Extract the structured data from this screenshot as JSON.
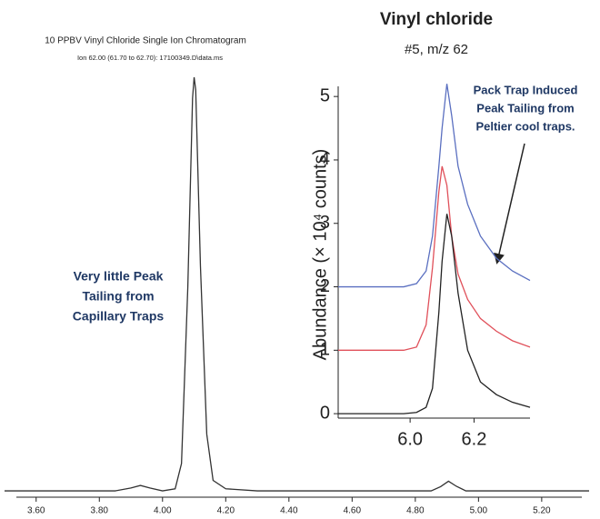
{
  "chart_data": [
    {
      "type": "line",
      "title": "10 PPBV Vinyl Chloride Single Ion Chromatogram",
      "subtitle": "Ion 62.00 (61.70 to 62.70): 17100349.D\\data.ms",
      "annotations": [
        {
          "lines": [
            "Very little Peak",
            "Tailing from",
            "Capillary Traps"
          ],
          "color": "#1f3864"
        }
      ],
      "x": [
        3.5,
        3.85,
        3.9,
        3.93,
        3.96,
        4.0,
        4.04,
        4.06,
        4.08,
        4.095,
        4.1,
        4.105,
        4.12,
        4.14,
        4.16,
        4.2,
        4.3,
        4.85,
        4.88,
        4.905,
        4.93,
        4.96,
        5.35
      ],
      "values": [
        1.5,
        1.5,
        2.2,
        2.8,
        2.2,
        1.5,
        2,
        8,
        50,
        95,
        100,
        97,
        55,
        15,
        4,
        2,
        1.5,
        1.5,
        2.5,
        3.8,
        2.6,
        1.5,
        1.5
      ],
      "color": "#333333",
      "xlim": [
        3.5,
        5.35
      ],
      "ylim": [
        0,
        100
      ],
      "xticks": [
        {
          "value": 3.6,
          "label": "3.60"
        },
        {
          "value": 3.8,
          "label": "3.80"
        },
        {
          "value": 4.0,
          "label": "4.00"
        },
        {
          "value": 4.2,
          "label": "4.20"
        },
        {
          "value": 4.4,
          "label": "4.40"
        },
        {
          "value": 4.6,
          "label": "4.60"
        },
        {
          "value": 4.8,
          "label": "4.80"
        },
        {
          "value": 5.0,
          "label": "5.00"
        },
        {
          "value": 5.2,
          "label": "5.20"
        }
      ]
    },
    {
      "type": "line",
      "title": "Vinyl chloride",
      "subtitle": "#5, m/z 62",
      "ylabel": "Abundance (× 10⁴ counts)",
      "annotations": [
        {
          "lines": [
            "Pack Trap Induced",
            "Peak Tailing from",
            "Peltier cool traps."
          ],
          "color": "#1f3864"
        }
      ],
      "x": [
        5.775,
        5.9,
        5.98,
        6.02,
        6.05,
        6.07,
        6.09,
        6.1,
        6.115,
        6.13,
        6.15,
        6.18,
        6.22,
        6.27,
        6.32,
        6.375
      ],
      "series": [
        {
          "color": "#5a6fc0",
          "values": [
            2.0,
            2.0,
            2.0,
            2.05,
            2.25,
            2.8,
            3.9,
            4.5,
            5.2,
            4.7,
            3.9,
            3.3,
            2.8,
            2.45,
            2.25,
            2.1
          ]
        },
        {
          "color": "#e0505a",
          "values": [
            1.0,
            1.0,
            1.0,
            1.05,
            1.4,
            2.3,
            3.5,
            3.9,
            3.6,
            2.8,
            2.2,
            1.8,
            1.5,
            1.3,
            1.15,
            1.05
          ]
        },
        {
          "color": "#222222",
          "values": [
            0,
            0,
            0,
            0.02,
            0.1,
            0.4,
            1.6,
            2.4,
            3.15,
            2.8,
            1.9,
            1.0,
            0.5,
            0.3,
            0.18,
            0.1
          ]
        }
      ],
      "xlim": [
        5.775,
        6.375
      ],
      "ylim": [
        -0.07,
        5.16
      ],
      "xticks": [
        {
          "value": 6.0,
          "label": "6.0"
        },
        {
          "value": 6.2,
          "label": "6.2"
        }
      ],
      "yticks": [
        0,
        1,
        2,
        3,
        4,
        5
      ]
    }
  ]
}
